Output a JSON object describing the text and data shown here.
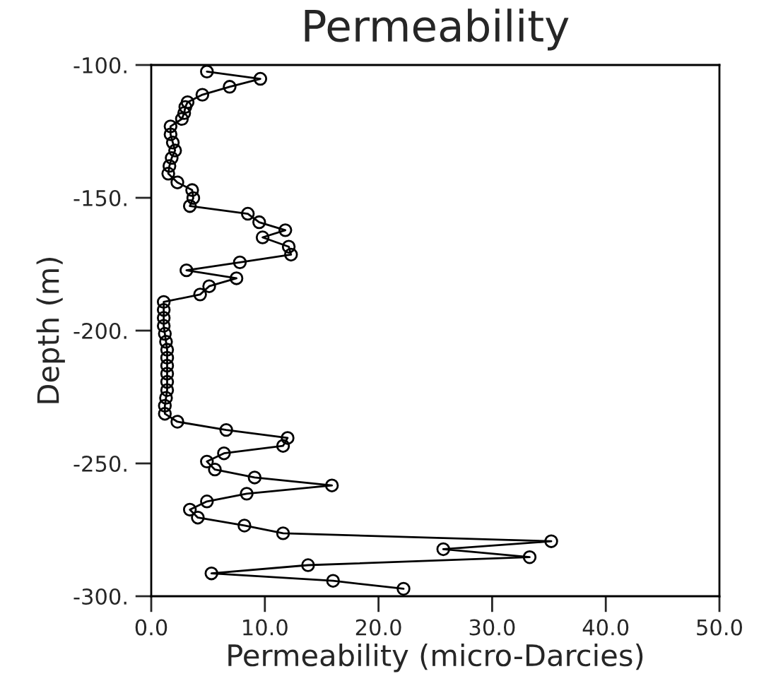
{
  "chart_data": {
    "type": "line",
    "orientation": "horizontal",
    "title": "Permeability",
    "xlabel": "Permeability (micro-Darcies)",
    "ylabel": "Depth (m)",
    "xlim": [
      0,
      50
    ],
    "ylim": [
      -300,
      -100
    ],
    "xticks": [
      {
        "value": 0,
        "label": "0.0"
      },
      {
        "value": 10,
        "label": "10.0"
      },
      {
        "value": 20,
        "label": "20.0"
      },
      {
        "value": 30,
        "label": "30.0"
      },
      {
        "value": 40,
        "label": "40.0"
      },
      {
        "value": 50,
        "label": "50.0"
      }
    ],
    "yticks": [
      {
        "value": -300,
        "label": "-300."
      },
      {
        "value": -250,
        "label": "-250."
      },
      {
        "value": -200,
        "label": "-200."
      },
      {
        "value": -150,
        "label": "-150."
      },
      {
        "value": -100,
        "label": "-100."
      }
    ],
    "marker": "circle",
    "line_style": "solid",
    "grid": false,
    "legend": false,
    "series": [
      {
        "color": "#000000",
        "x": [
          -102.5,
          -105.2,
          -108.2,
          -111.2,
          -114.0,
          -115.8,
          -118.1,
          -120.3,
          -123.1,
          -126.1,
          -129.2,
          -132.2,
          -135.0,
          -138.0,
          -140.9,
          -144.2,
          -147.1,
          -150.1,
          -153.1,
          -156.0,
          -159.2,
          -162.2,
          -164.9,
          -168.4,
          -171.4,
          -174.3,
          -177.3,
          -180.3,
          -183.3,
          -186.4,
          -189.2,
          -192.2,
          -195.2,
          -198.2,
          -201.2,
          -204.2,
          -207.2,
          -210.2,
          -213.2,
          -216.2,
          -219.3,
          -222.4,
          -225.3,
          -228.3,
          -231.3,
          -234.3,
          -237.4,
          -240.4,
          -243.4,
          -246.2,
          -249.3,
          -252.3,
          -255.3,
          -258.3,
          -261.4,
          -264.3,
          -267.4,
          -270.4,
          -273.4,
          -276.3,
          -279.3,
          -282.3,
          -285.3,
          -288.3,
          -291.4,
          -294.2,
          -297.2
        ],
        "values": [
          4.9,
          9.6,
          6.9,
          4.5,
          3.2,
          3.0,
          2.9,
          2.7,
          1.7,
          1.7,
          1.9,
          2.1,
          1.8,
          1.6,
          1.5,
          2.3,
          3.6,
          3.7,
          3.4,
          8.5,
          9.5,
          11.8,
          9.8,
          12.1,
          12.3,
          7.8,
          3.1,
          7.5,
          5.1,
          4.3,
          1.1,
          1.1,
          1.1,
          1.1,
          1.2,
          1.3,
          1.4,
          1.4,
          1.4,
          1.4,
          1.4,
          1.4,
          1.3,
          1.2,
          1.2,
          2.3,
          6.6,
          12.0,
          11.6,
          6.4,
          4.9,
          5.6,
          9.1,
          15.9,
          8.4,
          4.9,
          3.4,
          4.1,
          8.2,
          11.6,
          35.2,
          25.7,
          33.3,
          13.8,
          5.3,
          16.0,
          22.2
        ]
      }
    ]
  }
}
